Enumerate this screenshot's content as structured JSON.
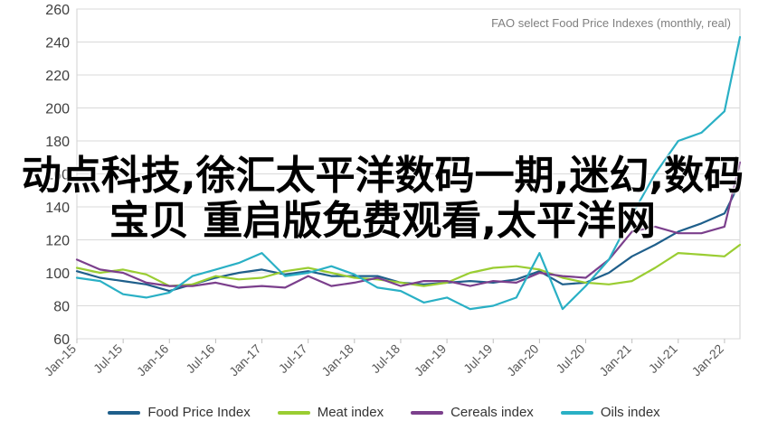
{
  "chart_data": {
    "type": "line",
    "title": "FAO select Food Price Indexes (monthly, real)",
    "xlabel": "",
    "ylabel": "",
    "ylim": [
      60,
      260
    ],
    "y_ticks": [
      "60",
      "80",
      "100",
      "120",
      "140",
      "160",
      "180",
      "200",
      "220",
      "240",
      "260"
    ],
    "x_ticks": [
      "Jan-15",
      "Jul-15",
      "Jan-16",
      "Jul-16",
      "Jan-17",
      "Jul-17",
      "Jan-18",
      "Jul-18",
      "Jan-19",
      "Jul-19",
      "Jan-20",
      "Jul-20",
      "Jan-21",
      "Jul-21",
      "Jan-22"
    ],
    "grid": true,
    "legend_position": "bottom",
    "series": [
      {
        "name": "Food Price Index",
        "color": "#1f5f8b",
        "points": [
          [
            "2015-01",
            101
          ],
          [
            "2015-04",
            97
          ],
          [
            "2015-07",
            95
          ],
          [
            "2015-10",
            93
          ],
          [
            "2016-01",
            89
          ],
          [
            "2016-04",
            93
          ],
          [
            "2016-07",
            97
          ],
          [
            "2016-10",
            100
          ],
          [
            "2017-01",
            102
          ],
          [
            "2017-04",
            99
          ],
          [
            "2017-07",
            101
          ],
          [
            "2017-10",
            98
          ],
          [
            "2018-01",
            98
          ],
          [
            "2018-04",
            98
          ],
          [
            "2018-07",
            94
          ],
          [
            "2018-10",
            93
          ],
          [
            "2019-01",
            94
          ],
          [
            "2019-04",
            95
          ],
          [
            "2019-07",
            94
          ],
          [
            "2019-10",
            96
          ],
          [
            "2020-01",
            101
          ],
          [
            "2020-04",
            93
          ],
          [
            "2020-07",
            94
          ],
          [
            "2020-10",
            100
          ],
          [
            "2021-01",
            110
          ],
          [
            "2021-04",
            117
          ],
          [
            "2021-07",
            125
          ],
          [
            "2021-10",
            130
          ],
          [
            "2022-01",
            136
          ],
          [
            "2022-03",
            155
          ]
        ]
      },
      {
        "name": "Meat index",
        "color": "#9acd32",
        "points": [
          [
            "2015-01",
            103
          ],
          [
            "2015-04",
            100
          ],
          [
            "2015-07",
            102
          ],
          [
            "2015-10",
            99
          ],
          [
            "2016-01",
            92
          ],
          [
            "2016-04",
            93
          ],
          [
            "2016-07",
            98
          ],
          [
            "2016-10",
            96
          ],
          [
            "2017-01",
            97
          ],
          [
            "2017-04",
            101
          ],
          [
            "2017-07",
            103
          ],
          [
            "2017-10",
            100
          ],
          [
            "2018-01",
            97
          ],
          [
            "2018-04",
            96
          ],
          [
            "2018-07",
            94
          ],
          [
            "2018-10",
            92
          ],
          [
            "2019-01",
            94
          ],
          [
            "2019-04",
            100
          ],
          [
            "2019-07",
            103
          ],
          [
            "2019-10",
            104
          ],
          [
            "2020-01",
            102
          ],
          [
            "2020-04",
            97
          ],
          [
            "2020-07",
            94
          ],
          [
            "2020-10",
            93
          ],
          [
            "2021-01",
            95
          ],
          [
            "2021-04",
            103
          ],
          [
            "2021-07",
            112
          ],
          [
            "2021-10",
            111
          ],
          [
            "2022-01",
            110
          ],
          [
            "2022-03",
            117
          ]
        ]
      },
      {
        "name": "Cereals index",
        "color": "#7b3f8c",
        "points": [
          [
            "2015-01",
            108
          ],
          [
            "2015-04",
            102
          ],
          [
            "2015-07",
            100
          ],
          [
            "2015-10",
            94
          ],
          [
            "2016-01",
            92
          ],
          [
            "2016-04",
            92
          ],
          [
            "2016-07",
            94
          ],
          [
            "2016-10",
            91
          ],
          [
            "2017-01",
            92
          ],
          [
            "2017-04",
            91
          ],
          [
            "2017-07",
            98
          ],
          [
            "2017-10",
            92
          ],
          [
            "2018-01",
            94
          ],
          [
            "2018-04",
            97
          ],
          [
            "2018-07",
            92
          ],
          [
            "2018-10",
            95
          ],
          [
            "2019-01",
            95
          ],
          [
            "2019-04",
            92
          ],
          [
            "2019-07",
            95
          ],
          [
            "2019-10",
            94
          ],
          [
            "2020-01",
            100
          ],
          [
            "2020-04",
            98
          ],
          [
            "2020-07",
            97
          ],
          [
            "2020-10",
            108
          ],
          [
            "2021-01",
            125
          ],
          [
            "2021-04",
            128
          ],
          [
            "2021-07",
            124
          ],
          [
            "2021-10",
            124
          ],
          [
            "2022-01",
            128
          ],
          [
            "2022-03",
            167
          ]
        ]
      },
      {
        "name": "Oils index",
        "color": "#2ab0c5",
        "points": [
          [
            "2015-01",
            97
          ],
          [
            "2015-04",
            95
          ],
          [
            "2015-07",
            87
          ],
          [
            "2015-10",
            85
          ],
          [
            "2016-01",
            88
          ],
          [
            "2016-04",
            98
          ],
          [
            "2016-07",
            102
          ],
          [
            "2016-10",
            106
          ],
          [
            "2017-01",
            112
          ],
          [
            "2017-04",
            98
          ],
          [
            "2017-07",
            100
          ],
          [
            "2017-10",
            104
          ],
          [
            "2018-01",
            99
          ],
          [
            "2018-04",
            91
          ],
          [
            "2018-07",
            89
          ],
          [
            "2018-10",
            82
          ],
          [
            "2019-01",
            85
          ],
          [
            "2019-04",
            78
          ],
          [
            "2019-07",
            80
          ],
          [
            "2019-10",
            85
          ],
          [
            "2020-01",
            112
          ],
          [
            "2020-04",
            78
          ],
          [
            "2020-07",
            92
          ],
          [
            "2020-10",
            108
          ],
          [
            "2021-01",
            135
          ],
          [
            "2021-04",
            160
          ],
          [
            "2021-07",
            180
          ],
          [
            "2021-10",
            185
          ],
          [
            "2022-01",
            198
          ],
          [
            "2022-03",
            243
          ]
        ]
      }
    ]
  },
  "overlay_text": "动点科技,徐汇太平洋数码一期,迷幻,数码宝贝 重启版免费观看,太平洋网"
}
